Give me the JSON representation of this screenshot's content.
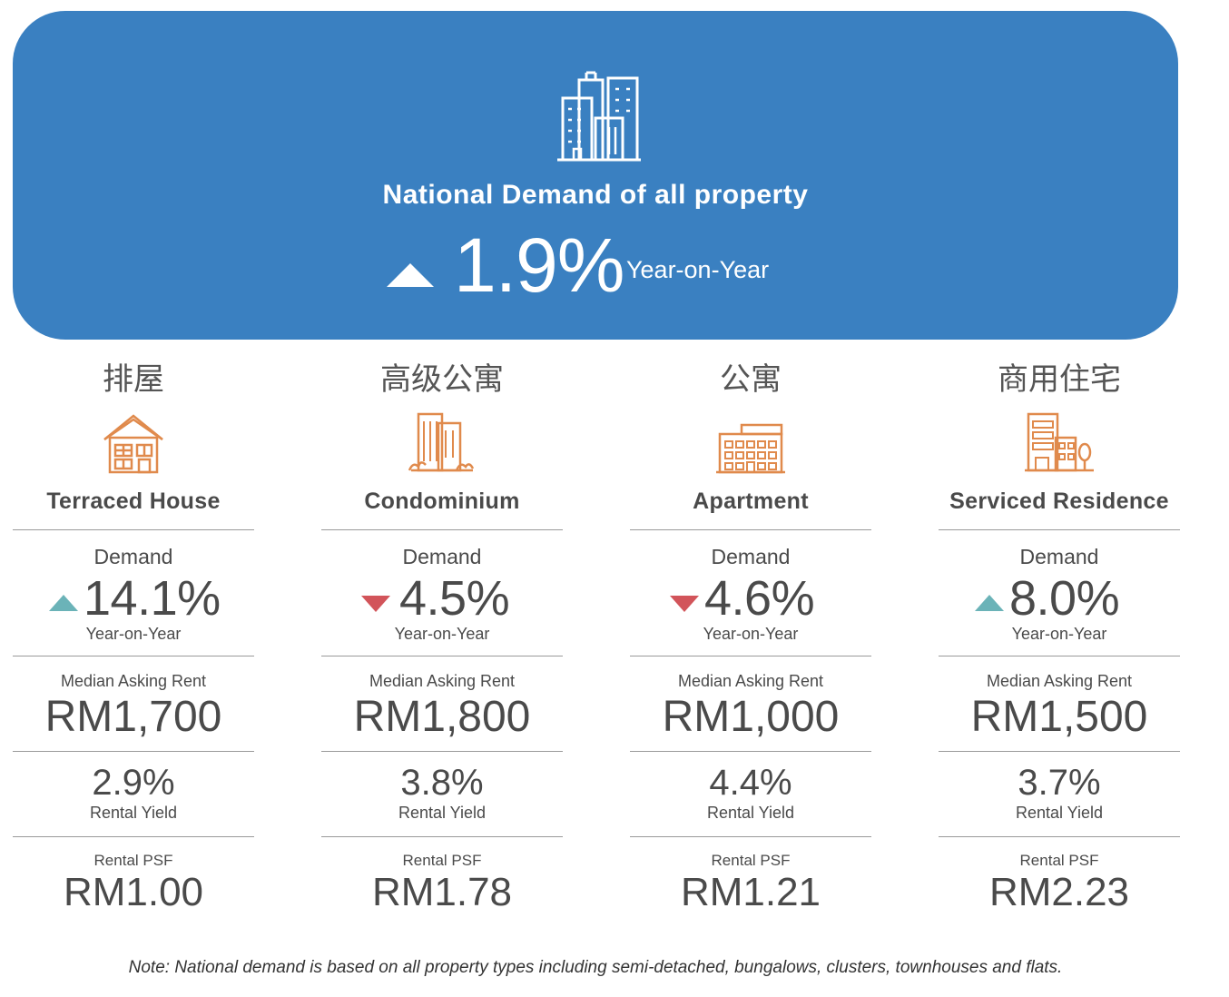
{
  "banner": {
    "title": "National Demand of all property",
    "value": "1.9%",
    "trend": "up",
    "period": "Year-on-Year",
    "icon": "city-buildings-icon",
    "color": "#3a80c1"
  },
  "labels": {
    "demand": "Demand",
    "period": "Year-on-Year",
    "median_rent": "Median Asking Rent",
    "rental_yield": "Rental Yield",
    "rental_psf": "Rental PSF"
  },
  "property_types": [
    {
      "cn": "排屋",
      "en": "Terraced House",
      "icon": "terraced-house-icon",
      "demand": "14.1%",
      "trend": "up",
      "median_rent": "RM1,700",
      "rental_yield": "2.9%",
      "rental_psf": "RM1.00"
    },
    {
      "cn": "高级公寓",
      "en": "Condominium",
      "icon": "condominium-icon",
      "demand": "4.5%",
      "trend": "down",
      "median_rent": "RM1,800",
      "rental_yield": "3.8%",
      "rental_psf": "RM1.78"
    },
    {
      "cn": "公寓",
      "en": "Apartment",
      "icon": "apartment-icon",
      "demand": "4.6%",
      "trend": "down",
      "median_rent": "RM1,000",
      "rental_yield": "4.4%",
      "rental_psf": "RM1.21"
    },
    {
      "cn": "商用住宅",
      "en": "Serviced Residence",
      "icon": "serviced-residence-icon",
      "demand": "8.0%",
      "trend": "up",
      "median_rent": "RM1,500",
      "rental_yield": "3.7%",
      "rental_psf": "RM2.23"
    }
  ],
  "colors": {
    "up": "#6bb3b8",
    "down": "#d2545a",
    "icon_orange": "#e08a4c"
  },
  "note": "Note: National demand is based on all property types including semi-detached, bungalows, clusters, townhouses and flats."
}
